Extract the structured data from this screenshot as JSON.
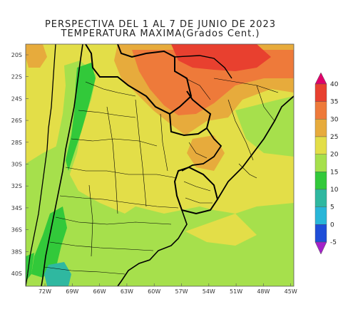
{
  "title": {
    "line1": "PERSPECTIVA DEL 1 AL 7 DE JUNIO DE 2023",
    "line2": "TEMPERATURA MAXIMA(Grados Cent.)"
  },
  "axes": {
    "lat_labels": [
      "20S",
      "22S",
      "24S",
      "26S",
      "28S",
      "30S",
      "32S",
      "34S",
      "36S",
      "38S",
      "40S"
    ],
    "lon_labels": [
      "72W",
      "69W",
      "66W",
      "63W",
      "60W",
      "57W",
      "54W",
      "51W",
      "48W",
      "45W"
    ]
  },
  "colorbar": {
    "levels": [
      "40",
      "35",
      "30",
      "25",
      "20",
      "15",
      "10",
      "5",
      "0",
      "-5"
    ],
    "colors": {
      "above_40": "#e0006a",
      "35_40": "#e8402f",
      "30_35": "#ee7a3a",
      "25_30": "#e7ab3c",
      "20_25": "#e3de48",
      "15_20": "#a6e04c",
      "10_15": "#32c93a",
      "5_10": "#2fb8a0",
      "0_5": "#29b6d8",
      "-5_0": "#1e4ed8",
      "below_-5": "#a322c9"
    }
  }
}
